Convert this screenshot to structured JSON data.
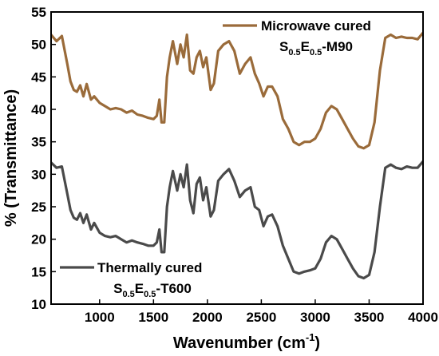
{
  "chart_data": {
    "type": "line",
    "xlabel": "Wavenumber (cm",
    "xlabel_sup": "-1",
    "xlabel_end": ")",
    "ylabel": "% (Transmittance)",
    "xlim": [
      550,
      4000
    ],
    "ylim": [
      10,
      55
    ],
    "xticks": [
      1000,
      1500,
      2000,
      2500,
      3000,
      3500,
      4000
    ],
    "yticks": [
      10,
      15,
      20,
      25,
      30,
      35,
      40,
      45,
      50,
      55
    ],
    "grid": false,
    "series": [
      {
        "name": "Microwave cured",
        "label_line2": {
          "a": "S",
          "a_sub": "0.5",
          "b": "E",
          "b_sub": "0.5",
          "c": "-M90"
        },
        "color": "#9a6b3a",
        "legend_position": "top-right",
        "x": [
          550,
          600,
          650,
          700,
          730,
          760,
          790,
          820,
          850,
          880,
          920,
          950,
          1000,
          1050,
          1100,
          1150,
          1200,
          1250,
          1300,
          1350,
          1400,
          1450,
          1500,
          1530,
          1555,
          1575,
          1600,
          1625,
          1650,
          1680,
          1720,
          1750,
          1780,
          1810,
          1840,
          1870,
          1900,
          1930,
          1960,
          1990,
          2030,
          2060,
          2100,
          2150,
          2200,
          2250,
          2300,
          2350,
          2400,
          2440,
          2480,
          2520,
          2560,
          2600,
          2650,
          2700,
          2750,
          2800,
          2850,
          2900,
          2950,
          3000,
          3050,
          3100,
          3150,
          3200,
          3250,
          3300,
          3350,
          3400,
          3450,
          3500,
          3550,
          3600,
          3650,
          3700,
          3750,
          3800,
          3850,
          3900,
          3950,
          4000
        ],
        "y": [
          51.5,
          50.5,
          51.3,
          47.0,
          44.3,
          43.0,
          42.7,
          43.7,
          42.0,
          43.9,
          41.5,
          42.0,
          41.0,
          40.5,
          40.0,
          40.2,
          40.0,
          39.5,
          39.8,
          39.2,
          39.0,
          38.7,
          38.5,
          39.0,
          41.5,
          38.0,
          38.0,
          45.0,
          48.0,
          50.5,
          47.0,
          50.0,
          48.0,
          51.5,
          46.0,
          45.5,
          48.0,
          49.0,
          46.5,
          48.0,
          43.0,
          44.0,
          49.0,
          50.0,
          50.5,
          49.0,
          45.5,
          47.0,
          48.0,
          45.5,
          44.0,
          42.0,
          43.5,
          43.5,
          42.0,
          38.5,
          37.0,
          35.0,
          34.5,
          35.0,
          35.0,
          35.5,
          37.0,
          39.5,
          40.5,
          40.0,
          38.5,
          37.0,
          35.5,
          34.3,
          34.0,
          34.5,
          38.0,
          46.0,
          51.0,
          51.5,
          51.0,
          51.2,
          51.0,
          51.0,
          50.8,
          51.8
        ]
      },
      {
        "name": "Thermally cured",
        "label_line2": {
          "a": "S",
          "a_sub": "0.5",
          "b": "E",
          "b_sub": "0.5",
          "c": "-T600"
        },
        "color": "#4a4a4a",
        "legend_position": "bottom-left",
        "x": [
          550,
          600,
          650,
          700,
          730,
          760,
          790,
          820,
          850,
          880,
          920,
          950,
          1000,
          1050,
          1100,
          1150,
          1200,
          1250,
          1300,
          1350,
          1400,
          1450,
          1500,
          1530,
          1555,
          1575,
          1600,
          1625,
          1650,
          1680,
          1720,
          1750,
          1780,
          1810,
          1840,
          1870,
          1900,
          1930,
          1960,
          1990,
          2030,
          2060,
          2100,
          2150,
          2200,
          2250,
          2300,
          2350,
          2400,
          2440,
          2480,
          2520,
          2560,
          2600,
          2650,
          2700,
          2750,
          2800,
          2850,
          2900,
          2950,
          3000,
          3050,
          3100,
          3150,
          3200,
          3250,
          3300,
          3350,
          3400,
          3450,
          3500,
          3550,
          3600,
          3650,
          3700,
          3750,
          3800,
          3850,
          3900,
          3950,
          4000
        ],
        "y": [
          31.8,
          31.0,
          31.2,
          27.0,
          24.5,
          23.3,
          23.0,
          24.0,
          22.5,
          23.8,
          21.5,
          22.5,
          21.0,
          20.5,
          20.3,
          20.5,
          20.0,
          19.5,
          19.8,
          19.5,
          19.3,
          19.0,
          19.0,
          19.5,
          21.5,
          18.0,
          18.0,
          25.0,
          28.0,
          30.5,
          27.5,
          30.0,
          28.0,
          31.5,
          26.0,
          24.0,
          28.5,
          29.5,
          26.0,
          28.0,
          23.5,
          24.5,
          29.0,
          30.0,
          30.8,
          29.0,
          26.5,
          27.5,
          28.0,
          25.0,
          24.5,
          22.0,
          23.5,
          23.8,
          22.0,
          19.0,
          17.0,
          15.0,
          14.7,
          15.0,
          15.2,
          15.5,
          17.0,
          19.5,
          20.5,
          20.0,
          18.5,
          17.0,
          15.5,
          14.3,
          14.0,
          14.5,
          18.0,
          25.0,
          31.0,
          31.5,
          31.0,
          30.8,
          31.2,
          31.0,
          31.0,
          32.0
        ]
      }
    ]
  }
}
